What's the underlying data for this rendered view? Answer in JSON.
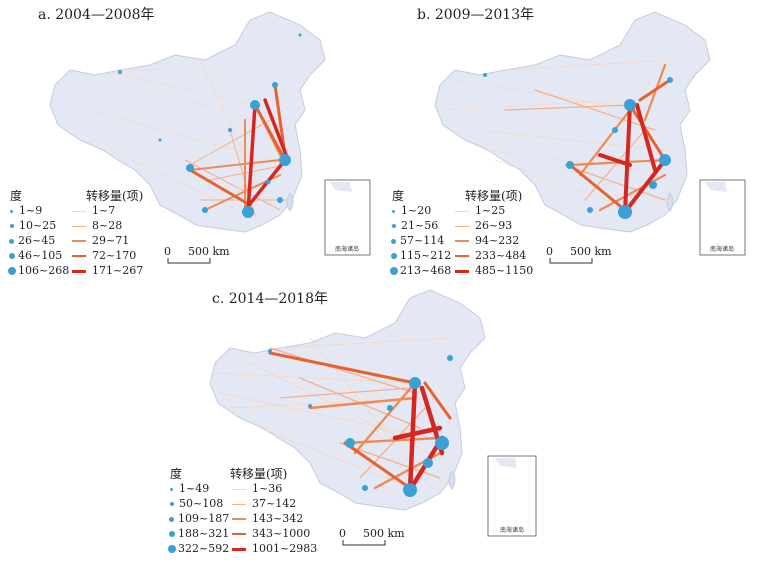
{
  "panels": [
    {
      "title": "a. 2004—2008年",
      "degree_header": "度",
      "transfer_header": "转移量(项)",
      "degree_classes": [
        "1~9",
        "10~25",
        "26~45",
        "46~105",
        "106~268"
      ],
      "transfer_classes": [
        "1~7",
        "8~28",
        "29~71",
        "72~170",
        "171~267"
      ],
      "scale": {
        "zero": "0",
        "label": "500 km"
      },
      "inset_label": "南海诸岛"
    },
    {
      "title": "b. 2009—2013年",
      "degree_header": "度",
      "transfer_header": "转移量(项)",
      "degree_classes": [
        "1~20",
        "21~56",
        "57~114",
        "115~212",
        "213~468"
      ],
      "transfer_classes": [
        "1~25",
        "26~93",
        "94~232",
        "233~484",
        "485~1150"
      ],
      "scale": {
        "zero": "0",
        "label": "500 km"
      },
      "inset_label": "南海诸岛"
    },
    {
      "title": "c. 2014—2018年",
      "degree_header": "度",
      "transfer_header": "转移量(项)",
      "degree_classes": [
        "1~49",
        "50~108",
        "109~187",
        "188~321",
        "322~592"
      ],
      "transfer_classes": [
        "1~36",
        "37~142",
        "143~342",
        "343~1000",
        "1001~2983"
      ],
      "scale": {
        "zero": "0",
        "label": "500 km"
      },
      "inset_label": "南海诸岛"
    }
  ],
  "colors": {
    "land": "#e4e8f4",
    "border": "#c5cbe0",
    "node": "#3aa0d5",
    "flow": [
      "#fbd3b8",
      "#f6b088",
      "#ef8a52",
      "#e8622e",
      "#d7261e"
    ]
  }
}
